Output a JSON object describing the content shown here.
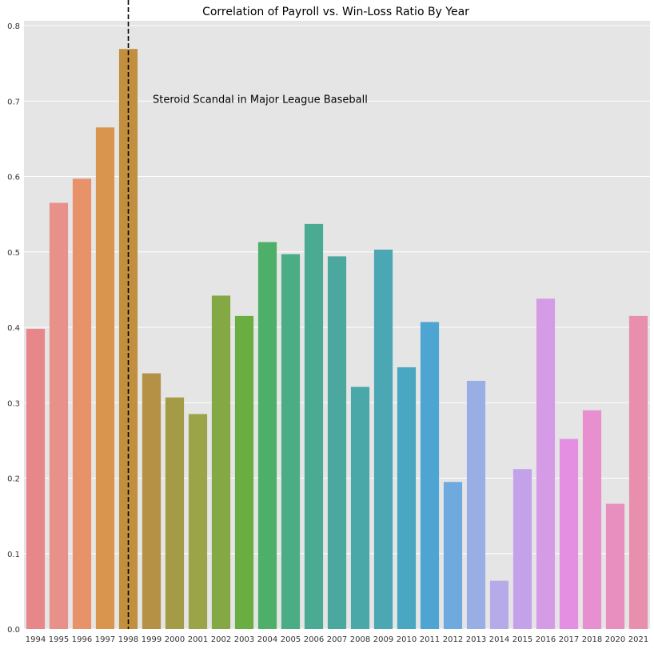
{
  "chart_data": {
    "type": "bar",
    "title": "Correlation of Payroll vs. Win-Loss Ratio By Year",
    "xlabel": "",
    "ylabel": "",
    "categories": [
      "1994",
      "1995",
      "1996",
      "1997",
      "1998",
      "1999",
      "2000",
      "2001",
      "2002",
      "2003",
      "2004",
      "2005",
      "2006",
      "2007",
      "2008",
      "2009",
      "2010",
      "2011",
      "2012",
      "2013",
      "2014",
      "2015",
      "2016",
      "2017",
      "2018",
      "2020",
      "2021"
    ],
    "values": [
      0.398,
      0.565,
      0.597,
      0.665,
      0.769,
      0.339,
      0.307,
      0.285,
      0.442,
      0.415,
      0.513,
      0.497,
      0.537,
      0.494,
      0.321,
      0.503,
      0.347,
      0.407,
      0.195,
      0.329,
      0.064,
      0.212,
      0.438,
      0.252,
      0.29,
      0.166,
      0.415
    ],
    "colors": [
      "#e8878a",
      "#e8908a",
      "#e8926a",
      "#d9954e",
      "#c28f3f",
      "#b49145",
      "#a49b47",
      "#9ba547",
      "#84a843",
      "#6aae41",
      "#4eb068",
      "#4aad84",
      "#4aaa93",
      "#4aa89e",
      "#4aa8a8",
      "#4aa7b3",
      "#4aa7c1",
      "#4ea5d1",
      "#6faadf",
      "#98aee5",
      "#b6abe8",
      "#c4a2ea",
      "#d59be6",
      "#e48fe1",
      "#e88fd0",
      "#e88fc0",
      "#e88fae"
    ],
    "ylim": [
      0,
      0.8
    ],
    "yticks": [
      "0.0",
      "0.1",
      "0.2",
      "0.3",
      "0.4",
      "0.5",
      "0.6",
      "0.7",
      "0.8"
    ],
    "grid": true,
    "background": "#e5e5e5",
    "vline": {
      "category": "1998",
      "style": "dashed",
      "color": "#000000"
    },
    "annotation": {
      "text": "Steroid Scandal in Major League Baseball",
      "x_category": "1999",
      "y": 0.7
    }
  }
}
